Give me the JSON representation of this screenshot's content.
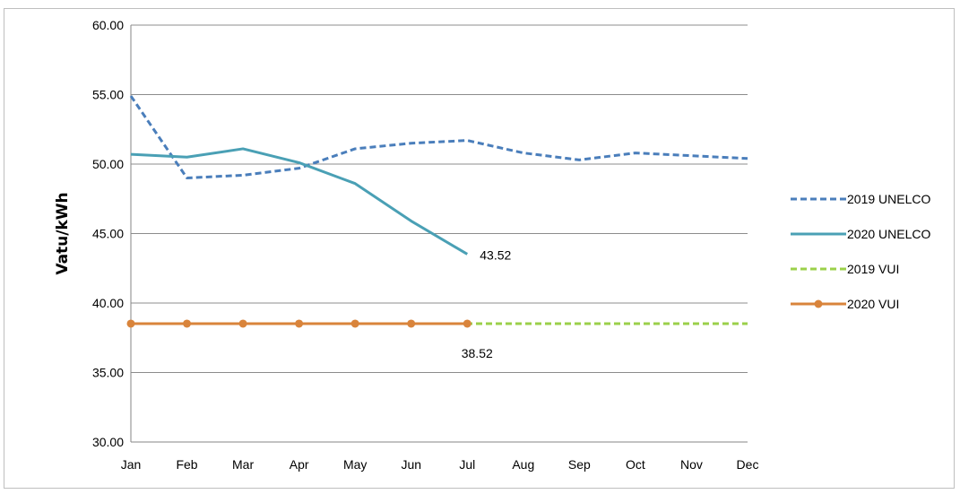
{
  "chart_data": {
    "type": "line",
    "title": "",
    "xlabel": "",
    "ylabel": "Vatu/kWh",
    "ylim": [
      30,
      60
    ],
    "y_ticks": [
      "30.00",
      "35.00",
      "40.00",
      "45.00",
      "50.00",
      "55.00",
      "60.00"
    ],
    "y_tick_values": [
      30,
      35,
      40,
      45,
      50,
      55,
      60
    ],
    "categories": [
      "Jan",
      "Feb",
      "Mar",
      "Apr",
      "May",
      "Jun",
      "Jul",
      "Aug",
      "Sep",
      "Oct",
      "Nov",
      "Dec"
    ],
    "grid": "horizontal",
    "legend_position": "right",
    "series": [
      {
        "name": "2019 UNELCO",
        "color": "#4a7ebb",
        "style": "dashed",
        "marker": "none",
        "values": [
          54.9,
          49.0,
          49.2,
          49.7,
          51.1,
          51.5,
          51.7,
          50.8,
          50.3,
          50.8,
          50.6,
          50.4
        ]
      },
      {
        "name": "2020 UNELCO",
        "color": "#4aa0b5",
        "style": "solid",
        "marker": "none",
        "values": [
          50.7,
          50.5,
          51.1,
          50.1,
          48.6,
          45.9,
          43.52,
          null,
          null,
          null,
          null,
          null
        ]
      },
      {
        "name": "2019 VUI",
        "color": "#9bd04a",
        "style": "dashed",
        "marker": "none",
        "values": [
          38.52,
          38.52,
          38.52,
          38.52,
          38.52,
          38.52,
          38.52,
          38.52,
          38.52,
          38.52,
          38.52,
          38.52
        ]
      },
      {
        "name": "2020 VUI",
        "color": "#d9843b",
        "style": "solid",
        "marker": "circle",
        "values": [
          38.52,
          38.52,
          38.52,
          38.52,
          38.52,
          38.52,
          38.52,
          null,
          null,
          null,
          null,
          null
        ]
      }
    ],
    "annotations": [
      {
        "text": "43.52",
        "series": "2020 UNELCO",
        "category": "Jul"
      },
      {
        "text": "38.52",
        "series": "2020 VUI",
        "category": "Jul"
      }
    ]
  }
}
